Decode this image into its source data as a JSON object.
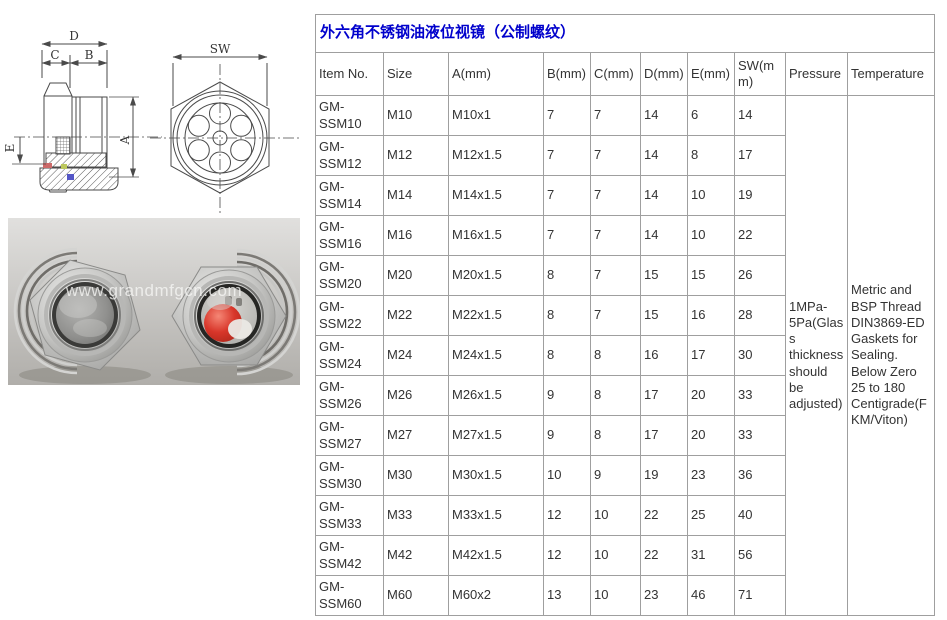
{
  "title": "外六角不锈钢油液位视镜（公制螺纹）",
  "table": {
    "columns": [
      "Item No.",
      "Size",
      "A(mm)",
      "B(mm)",
      "C(mm)",
      "D(mm)",
      "E(mm)",
      "SW(mm)",
      "Pressure",
      "Temperature"
    ],
    "rows": [
      [
        "GM-SSM10",
        "M10",
        "M10x1",
        "7",
        "7",
        "14",
        "6",
        "14"
      ],
      [
        "GM-SSM12",
        "M12",
        "M12x1.5",
        "7",
        "7",
        "14",
        "8",
        "17"
      ],
      [
        "GM-SSM14",
        "M14",
        "M14x1.5",
        "7",
        "7",
        "14",
        "10",
        "19"
      ],
      [
        "GM-SSM16",
        "M16",
        "M16x1.5",
        "7",
        "7",
        "14",
        "10",
        "22"
      ],
      [
        "GM-SSM20",
        "M20",
        "M20x1.5",
        "8",
        "7",
        "15",
        "15",
        "26"
      ],
      [
        "GM-SSM22",
        "M22",
        "M22x1.5",
        "8",
        "7",
        "15",
        "16",
        "28"
      ],
      [
        "GM-SSM24",
        "M24",
        "M24x1.5",
        "8",
        "8",
        "16",
        "17",
        "30"
      ],
      [
        "GM-SSM26",
        "M26",
        "M26x1.5",
        "9",
        "8",
        "17",
        "20",
        "33"
      ],
      [
        "GM-SSM27",
        "M27",
        "M27x1.5",
        "9",
        "8",
        "17",
        "20",
        "33"
      ],
      [
        "GM-SSM30",
        "M30",
        "M30x1.5",
        "10",
        "9",
        "19",
        "23",
        "36"
      ],
      [
        "GM-SSM33",
        "M33",
        "M33x1.5",
        "12",
        "10",
        "22",
        "25",
        "40"
      ],
      [
        "GM-SSM42",
        "M42",
        "M42x1.5",
        "12",
        "10",
        "22",
        "31",
        "56"
      ],
      [
        "GM-SSM60",
        "M60",
        "M60x2",
        "13",
        "10",
        "23",
        "46",
        "71"
      ]
    ],
    "pressure": "1MPa-5Pa(Glass thickness should be adjusted)",
    "temperature": "Metric and BSP Thread DIN3869-ED Gaskets for Sealing. Below Zero 25 to 180 Centigrade(FKM/Viton)"
  },
  "drawing": {
    "dim_d": "D",
    "dim_c": "C",
    "dim_b": "B",
    "dim_e": "E",
    "dim_a": "A",
    "dim_sw": "SW"
  },
  "photo": {
    "watermark": "www.grandmfgcn.com"
  },
  "colors": {
    "title_blue": "#0000cc",
    "table_border": "#9f9f9f",
    "text": "#333333",
    "red_ball": "#d8362a"
  }
}
